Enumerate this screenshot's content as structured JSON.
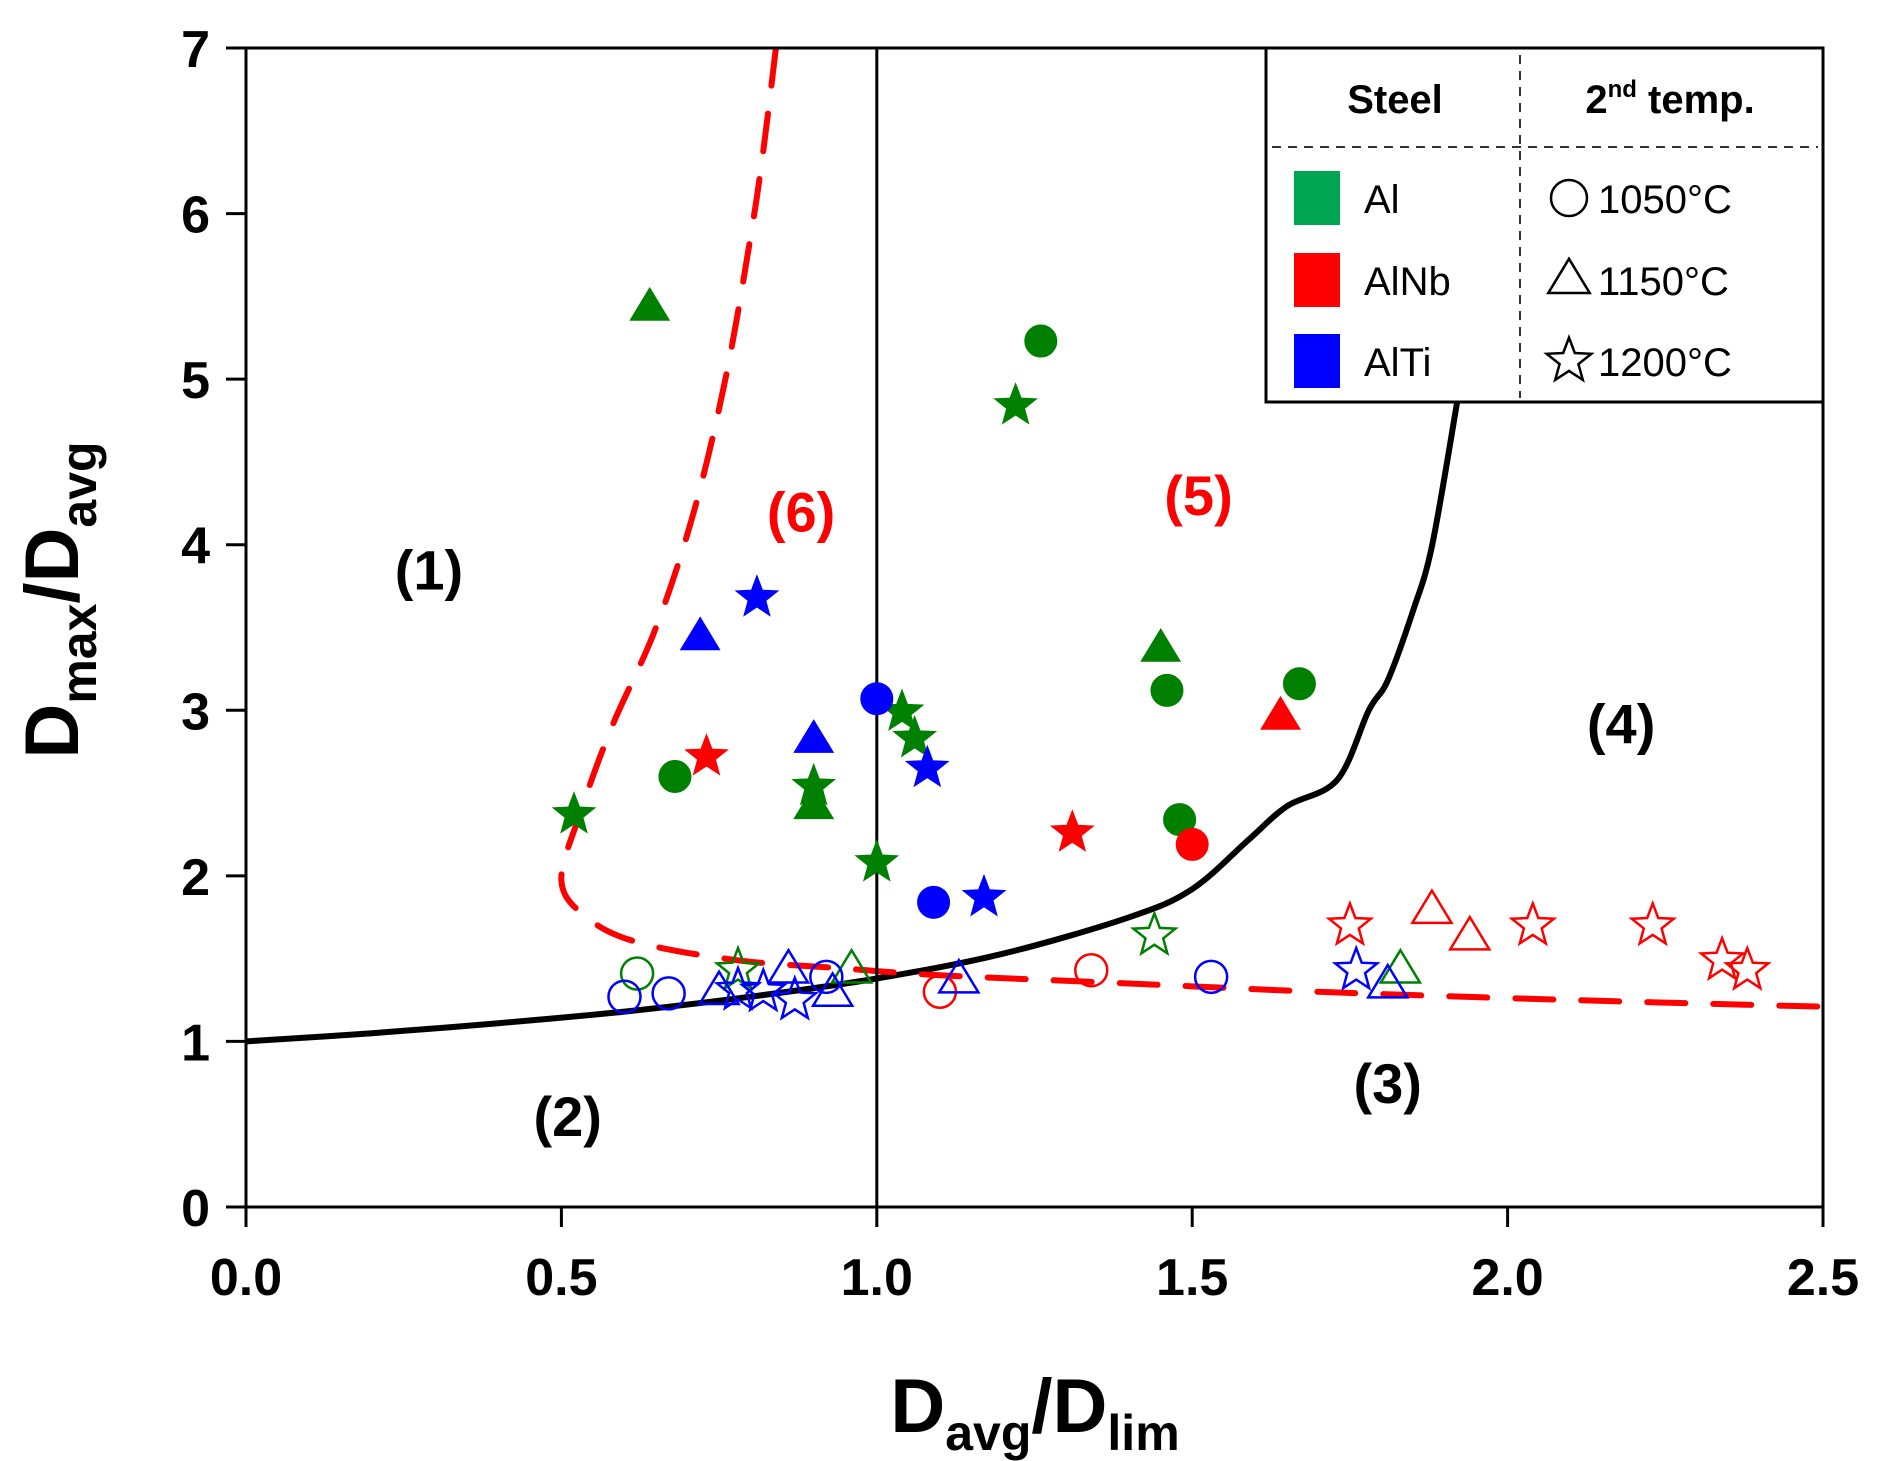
{
  "chart_data": {
    "type": "scatter",
    "title": "",
    "xlabel": {
      "main": "D",
      "sub1": "avg",
      "sep": "/D",
      "sub2": "lim"
    },
    "ylabel": {
      "main": "D",
      "sub1": "max",
      "sep": "/D",
      "sub2": "avg"
    },
    "xlim": [
      0,
      2.5
    ],
    "ylim": [
      0,
      7
    ],
    "x_ticks": [
      0.0,
      0.5,
      1.0,
      1.5,
      2.0,
      2.5
    ],
    "x_tick_labels": [
      "0.0",
      "0.5",
      "1.0",
      "1.5",
      "2.0",
      "2.5"
    ],
    "y_ticks": [
      0,
      1,
      2,
      3,
      4,
      5,
      6,
      7
    ],
    "y_tick_labels": [
      "0",
      "1",
      "2",
      "3",
      "4",
      "5",
      "6",
      "7"
    ],
    "grid": false,
    "reference_lines": [
      {
        "name": "vertical-line-x1",
        "type": "vertical",
        "x": 1.0,
        "color": "#000000"
      }
    ],
    "curves": [
      {
        "name": "black-boundary-curve",
        "color": "#000000",
        "style": "solid",
        "points": [
          [
            0.0,
            1.0
          ],
          [
            0.2,
            1.05
          ],
          [
            0.4,
            1.11
          ],
          [
            0.6,
            1.18
          ],
          [
            0.8,
            1.27
          ],
          [
            1.0,
            1.38
          ],
          [
            1.2,
            1.53
          ],
          [
            1.4,
            1.75
          ],
          [
            1.5,
            1.92
          ],
          [
            1.59,
            2.22
          ],
          [
            1.65,
            2.42
          ],
          [
            1.73,
            2.58
          ],
          [
            1.78,
            3.0
          ],
          [
            1.81,
            3.18
          ],
          [
            1.85,
            3.6
          ],
          [
            1.88,
            3.99
          ],
          [
            1.92,
            4.86
          ]
        ]
      },
      {
        "name": "red-dashed-boundary-curve",
        "color": "#ff0000",
        "style": "dashed",
        "points": [
          [
            0.84,
            7.0
          ],
          [
            0.82,
            6.38
          ],
          [
            0.8,
            5.86
          ],
          [
            0.76,
            5.0
          ],
          [
            0.71,
            4.2
          ],
          [
            0.65,
            3.5
          ],
          [
            0.58,
            2.9
          ],
          [
            0.53,
            2.38
          ],
          [
            0.5,
            1.97
          ],
          [
            0.54,
            1.75
          ],
          [
            0.62,
            1.6
          ],
          [
            0.78,
            1.49
          ],
          [
            0.95,
            1.44
          ],
          [
            1.1,
            1.4
          ],
          [
            1.4,
            1.35
          ],
          [
            1.7,
            1.3
          ],
          [
            2.1,
            1.25
          ],
          [
            2.5,
            1.21
          ]
        ]
      }
    ],
    "series": [
      {
        "steel": "Al",
        "temp": "1050°C",
        "marker": "circle",
        "filled": true,
        "color": "#008000",
        "points": [
          [
            1.26,
            5.23
          ],
          [
            0.68,
            2.6
          ],
          [
            1.46,
            3.12
          ],
          [
            1.67,
            3.16
          ],
          [
            1.48,
            2.34
          ]
        ]
      },
      {
        "steel": "Al",
        "temp": "1150°C",
        "marker": "triangle",
        "filled": true,
        "color": "#008000",
        "points": [
          [
            0.64,
            5.43
          ],
          [
            1.45,
            3.37
          ],
          [
            0.9,
            2.42
          ]
        ]
      },
      {
        "steel": "Al",
        "temp": "1200°C",
        "marker": "star",
        "filled": true,
        "color": "#008000",
        "points": [
          [
            1.22,
            4.84
          ],
          [
            1.04,
            2.99
          ],
          [
            1.06,
            2.83
          ],
          [
            0.9,
            2.54
          ],
          [
            0.52,
            2.37
          ],
          [
            1.0,
            2.08
          ]
        ]
      },
      {
        "steel": "AlNb",
        "temp": "1050°C",
        "marker": "circle",
        "filled": true,
        "color": "#ff0000",
        "points": [
          [
            1.5,
            2.19
          ]
        ]
      },
      {
        "steel": "AlNb",
        "temp": "1150°C",
        "marker": "triangle",
        "filled": true,
        "color": "#ff0000",
        "points": [
          [
            1.64,
            2.96
          ]
        ]
      },
      {
        "steel": "AlNb",
        "temp": "1200°C",
        "marker": "star",
        "filled": true,
        "color": "#ff0000",
        "points": [
          [
            0.73,
            2.72
          ],
          [
            1.31,
            2.26
          ]
        ]
      },
      {
        "steel": "AlTi",
        "temp": "1050°C",
        "marker": "circle",
        "filled": true,
        "color": "#0000ff",
        "points": [
          [
            1.0,
            3.07
          ],
          [
            1.09,
            1.84
          ]
        ]
      },
      {
        "steel": "AlTi",
        "temp": "1150°C",
        "marker": "triangle",
        "filled": true,
        "color": "#0000ff",
        "points": [
          [
            0.72,
            3.44
          ],
          [
            0.9,
            2.82
          ]
        ]
      },
      {
        "steel": "AlTi",
        "temp": "1200°C",
        "marker": "star",
        "filled": true,
        "color": "#0000ff",
        "points": [
          [
            0.81,
            3.68
          ],
          [
            1.08,
            2.65
          ],
          [
            1.17,
            1.87
          ]
        ]
      },
      {
        "steel": "Al",
        "temp": "1050°C",
        "marker": "circle",
        "filled": false,
        "color": "#008000",
        "points": [
          [
            0.62,
            1.41
          ]
        ]
      },
      {
        "steel": "Al",
        "temp": "1150°C",
        "marker": "triangle",
        "filled": false,
        "color": "#008000",
        "points": [
          [
            0.96,
            1.43
          ],
          [
            1.83,
            1.43
          ]
        ]
      },
      {
        "steel": "Al",
        "temp": "1200°C",
        "marker": "star",
        "filled": false,
        "color": "#008000",
        "points": [
          [
            0.78,
            1.43
          ],
          [
            1.44,
            1.64
          ]
        ]
      },
      {
        "steel": "AlNb",
        "temp": "1050°C",
        "marker": "circle",
        "filled": false,
        "color": "#ff0000",
        "points": [
          [
            1.1,
            1.3
          ],
          [
            1.34,
            1.43
          ]
        ]
      },
      {
        "steel": "AlNb",
        "temp": "1150°C",
        "marker": "triangle",
        "filled": false,
        "color": "#ff0000",
        "points": [
          [
            1.88,
            1.79
          ],
          [
            1.94,
            1.63
          ]
        ]
      },
      {
        "steel": "AlNb",
        "temp": "1200°C",
        "marker": "star",
        "filled": false,
        "color": "#ff0000",
        "points": [
          [
            1.75,
            1.7
          ],
          [
            2.04,
            1.7
          ],
          [
            2.23,
            1.7
          ],
          [
            2.34,
            1.49
          ],
          [
            2.38,
            1.43
          ]
        ]
      },
      {
        "steel": "AlTi",
        "temp": "1050°C",
        "marker": "circle",
        "filled": false,
        "color": "#0000ff",
        "points": [
          [
            0.6,
            1.27
          ],
          [
            0.67,
            1.29
          ],
          [
            0.92,
            1.39
          ],
          [
            1.53,
            1.39
          ]
        ]
      },
      {
        "steel": "AlTi",
        "temp": "1150°C",
        "marker": "triangle",
        "filled": false,
        "color": "#0000ff",
        "points": [
          [
            0.75,
            1.3
          ],
          [
            0.86,
            1.43
          ],
          [
            0.93,
            1.29
          ],
          [
            1.13,
            1.37
          ],
          [
            1.81,
            1.34
          ]
        ]
      },
      {
        "steel": "AlTi",
        "temp": "1200°C",
        "marker": "star",
        "filled": false,
        "color": "#0000ff",
        "points": [
          [
            0.78,
            1.31
          ],
          [
            0.82,
            1.3
          ],
          [
            0.87,
            1.25
          ],
          [
            1.76,
            1.43
          ]
        ]
      }
    ],
    "region_labels": [
      {
        "text": "(1)",
        "x": 0.29,
        "y": 3.85,
        "color": "#000000"
      },
      {
        "text": "(2)",
        "x": 0.51,
        "y": 0.55,
        "color": "#000000"
      },
      {
        "text": "(3)",
        "x": 1.81,
        "y": 0.75,
        "color": "#000000"
      },
      {
        "text": "(4)",
        "x": 2.18,
        "y": 2.92,
        "color": "#000000"
      },
      {
        "text": "(5)",
        "x": 1.51,
        "y": 4.3,
        "color": "#ff0000"
      },
      {
        "text": "(6)",
        "x": 0.88,
        "y": 4.2,
        "color": "#ff0000"
      }
    ],
    "legend": {
      "placement": "top-right",
      "steel_header": "Steel",
      "temp_header_main": "2",
      "temp_header_sup": "nd",
      "temp_header_rest": " temp.",
      "steel_entries": [
        {
          "label": "Al",
          "color": "#00a651"
        },
        {
          "label": "AlNb",
          "color": "#ff0000"
        },
        {
          "label": "AlTi",
          "color": "#0000ff"
        }
      ],
      "temp_entries": [
        {
          "label": "1050°C",
          "marker": "circle"
        },
        {
          "label": "1150°C",
          "marker": "triangle"
        },
        {
          "label": "1200°C",
          "marker": "star"
        }
      ]
    }
  }
}
